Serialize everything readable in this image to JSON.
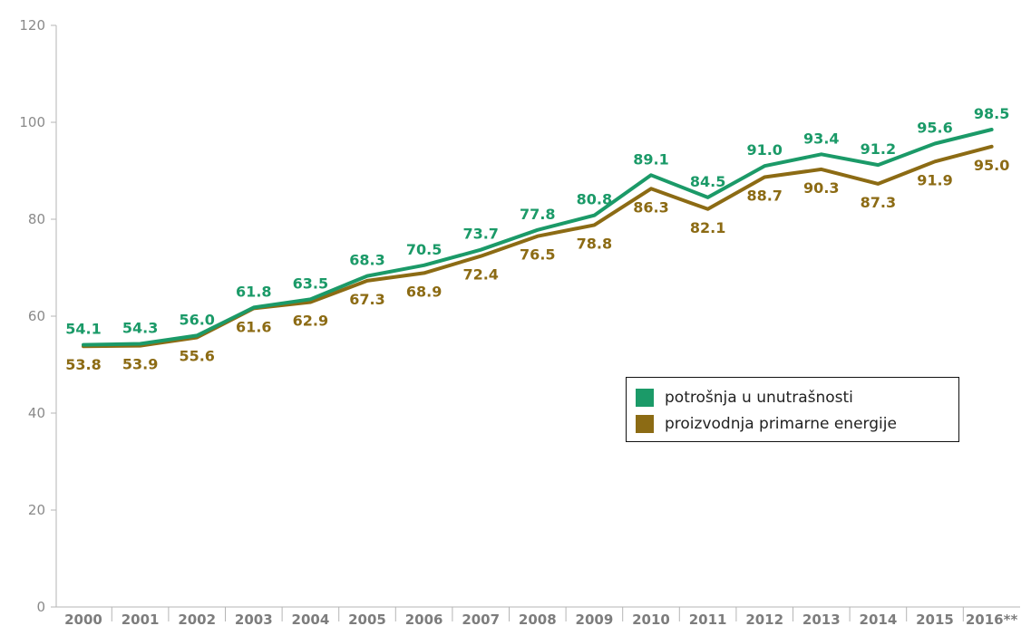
{
  "chart_data": {
    "type": "line",
    "title": "",
    "xlabel": "",
    "ylabel": "",
    "categories": [
      "2000",
      "2001",
      "2002",
      "2003",
      "2004",
      "2005",
      "2006",
      "2007",
      "2008",
      "2009",
      "2010",
      "2011",
      "2012",
      "2013",
      "2014",
      "2015",
      "2016**"
    ],
    "ylim": [
      0,
      120
    ],
    "yticks": [
      0,
      20,
      40,
      60,
      80,
      100,
      120
    ],
    "grid": false,
    "legend_position": "right",
    "series": [
      {
        "name": "potrošnja u unutrašnosti",
        "color": "#1b9a68",
        "values": [
          54.1,
          54.3,
          56.0,
          61.8,
          63.5,
          68.3,
          70.5,
          73.7,
          77.8,
          80.8,
          89.1,
          84.5,
          91.0,
          93.4,
          91.2,
          95.6,
          98.5
        ]
      },
      {
        "name": "proizvodnja primarne energije",
        "color": "#8c6b14",
        "values": [
          53.8,
          53.9,
          55.6,
          61.6,
          62.9,
          67.3,
          68.9,
          72.4,
          76.5,
          78.8,
          86.3,
          82.1,
          88.7,
          90.3,
          87.3,
          91.9,
          95.0
        ]
      }
    ]
  }
}
